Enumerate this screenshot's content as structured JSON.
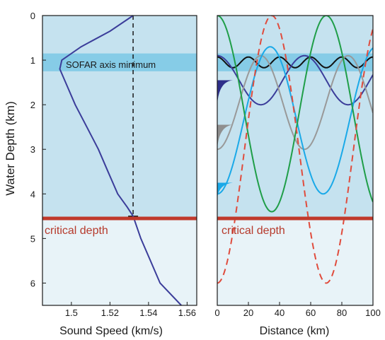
{
  "chart_data": [
    {
      "id": "sound-speed",
      "type": "line",
      "xlabel": "Sound Speed (km/s)",
      "ylabel": "Water Depth (km)",
      "xlim": [
        1.485,
        1.565
      ],
      "ylim": [
        6.5,
        0
      ],
      "xticks": [
        1.5,
        1.52,
        1.54,
        1.56
      ],
      "xtick_labels": [
        "1.5",
        "1.52",
        "1.54",
        "1.56"
      ],
      "yticks": [
        0,
        1,
        2,
        3,
        4,
        5,
        6
      ],
      "ytick_labels": [
        "0",
        "1",
        "2",
        "3",
        "4",
        "5",
        "6"
      ],
      "series": [
        {
          "color": "#3b3d9a",
          "points": [
            [
              1.532,
              0
            ],
            [
              1.52,
              0.35
            ],
            [
              1.505,
              0.7
            ],
            [
              1.495,
              1.0
            ],
            [
              1.494,
              1.2
            ],
            [
              1.497,
              1.5
            ],
            [
              1.502,
              2.0
            ],
            [
              1.508,
              2.5
            ],
            [
              1.514,
              3.0
            ],
            [
              1.519,
              3.5
            ],
            [
              1.524,
              4.0
            ],
            [
              1.529,
              4.3
            ],
            [
              1.532,
              4.5
            ],
            [
              1.536,
              5.0
            ],
            [
              1.541,
              5.5
            ],
            [
              1.546,
              6.0
            ],
            [
              1.557,
              6.5
            ]
          ]
        }
      ],
      "reference_line": {
        "x": 1.532,
        "y_range": [
          0,
          4.5
        ],
        "style": "dashed"
      },
      "sofar_band": {
        "y_range": [
          0.85,
          1.25
        ],
        "label": "SOFAR axis minimum"
      },
      "critical_depth": {
        "y": 4.55,
        "label": "critical depth"
      }
    },
    {
      "id": "ray-paths",
      "type": "line",
      "xlabel": "Distance (km)",
      "xlim": [
        0,
        100
      ],
      "ylim": [
        6.5,
        0
      ],
      "xticks": [
        0,
        20,
        40,
        60,
        80,
        100
      ],
      "xtick_labels": [
        "0",
        "20",
        "40",
        "60",
        "80",
        "100"
      ],
      "series": [
        {
          "color": "#111111",
          "style": "solid",
          "y_center": 1.05,
          "amplitude": 0.12,
          "period": 20,
          "phase": 0
        },
        {
          "color": "#3b3d9a",
          "style": "solid",
          "y_center": 1.45,
          "amplitude": 0.55,
          "period": 56,
          "phase": 0
        },
        {
          "color": "#999999",
          "style": "solid",
          "y_center": 1.95,
          "amplitude": 1.05,
          "period": 56,
          "phase": 28
        },
        {
          "color": "#1aa9e8",
          "style": "solid",
          "y_center": 2.35,
          "amplitude": 1.65,
          "period": 68,
          "phase": 34
        },
        {
          "color": "#1f9e48",
          "style": "solid",
          "y_center": 2.2,
          "amplitude": 2.2,
          "period": 70,
          "phase": 0
        },
        {
          "color": "#e04b3c",
          "style": "dashed",
          "y_center": 3.0,
          "amplitude": 3.0,
          "period": 70,
          "phase": -35
        }
      ],
      "sofar_band": {
        "y_range": [
          0.85,
          1.25
        ]
      },
      "critical_depth": {
        "y": 4.55,
        "label": "critical depth"
      },
      "source_wedges": [
        {
          "color": "#2e2f8a",
          "y_range": [
            1.45,
            2.0
          ]
        },
        {
          "color": "#8f8f8f",
          "y_range": [
            2.45,
            3.0
          ]
        },
        {
          "color": "#1aa9e8",
          "y_range": [
            3.75,
            4.1
          ]
        }
      ]
    }
  ]
}
